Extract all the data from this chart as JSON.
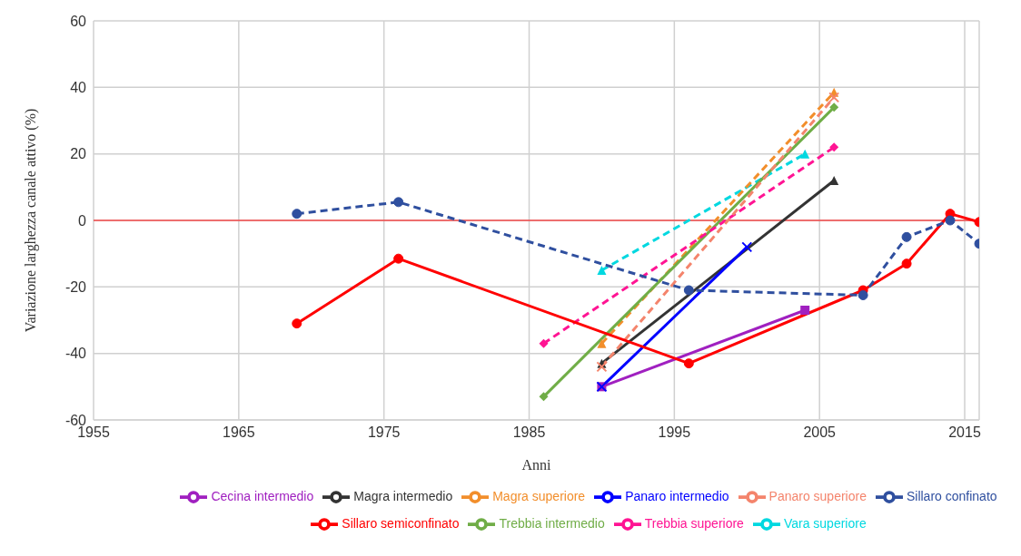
{
  "chart_data": {
    "type": "line",
    "xlabel": "Anni",
    "ylabel": "Variazione larghezza canale attivo (%)",
    "xlim": [
      1955,
      2016
    ],
    "xticks": [
      1955,
      1965,
      1975,
      1985,
      1995,
      2005,
      2015
    ],
    "ylim": [
      -60,
      60
    ],
    "yticks": [
      -60,
      -40,
      -20,
      0,
      20,
      40,
      60
    ],
    "grid": true,
    "legend": "bottom",
    "ref_lines": [
      {
        "axis": "y",
        "value": 0,
        "color": "#ff0000",
        "line_style": "solid"
      }
    ],
    "series": [
      {
        "name": "Sillaro confinato",
        "color": "#2f4f9f",
        "line_style": "dashed",
        "marker": "circle",
        "x": [
          1969,
          1976,
          1996,
          2008,
          2011,
          2014,
          2016
        ],
        "values": [
          2,
          5.5,
          -21,
          -22.5,
          -5,
          0,
          -7
        ]
      },
      {
        "name": "Sillaro semiconfinato",
        "color": "#ff0000",
        "line_style": "solid",
        "marker": "circle",
        "x": [
          1969,
          1976,
          1996,
          2008,
          2011,
          2014,
          2016
        ],
        "values": [
          -31,
          -11.5,
          -43,
          -21,
          -13,
          2,
          -0.5
        ]
      },
      {
        "name": "Panaro superiore",
        "color": "#f4846c",
        "line_style": "dashed",
        "marker": "cross",
        "x": [
          1990,
          2006
        ],
        "values": [
          -44,
          37
        ]
      },
      {
        "name": "Panaro intermedio",
        "color": "#0000ff",
        "line_style": "solid",
        "marker": "cross",
        "x": [
          1990,
          2000
        ],
        "values": [
          -50,
          -8
        ]
      },
      {
        "name": "Trebbia superiore",
        "color": "#ff1493",
        "line_style": "dashed",
        "marker": "diamond",
        "x": [
          1986,
          2006
        ],
        "values": [
          -37,
          22
        ]
      },
      {
        "name": "Trebbia intermedio",
        "color": "#70ad47",
        "line_style": "solid",
        "marker": "diamond",
        "x": [
          1986,
          2006
        ],
        "values": [
          -53,
          34
        ]
      },
      {
        "name": "Magra superiore",
        "color": "#f28e2b",
        "line_style": "dashed",
        "marker": "triangle",
        "x": [
          1990,
          2006
        ],
        "values": [
          -37,
          38.5
        ]
      },
      {
        "name": "Magra intermedio",
        "color": "#333333",
        "line_style": "solid",
        "marker": "triangle",
        "x": [
          1990,
          2006
        ],
        "values": [
          -43,
          12
        ]
      },
      {
        "name": "Vara superiore",
        "color": "#00d8e0",
        "line_style": "dashed",
        "marker": "triangle",
        "x": [
          1990,
          2004
        ],
        "values": [
          -15,
          20
        ]
      },
      {
        "name": "Cecina intermedio",
        "color": "#a020c0",
        "line_style": "solid",
        "marker": "square",
        "x": [
          1990,
          2004
        ],
        "values": [
          -50,
          -27
        ]
      }
    ]
  }
}
